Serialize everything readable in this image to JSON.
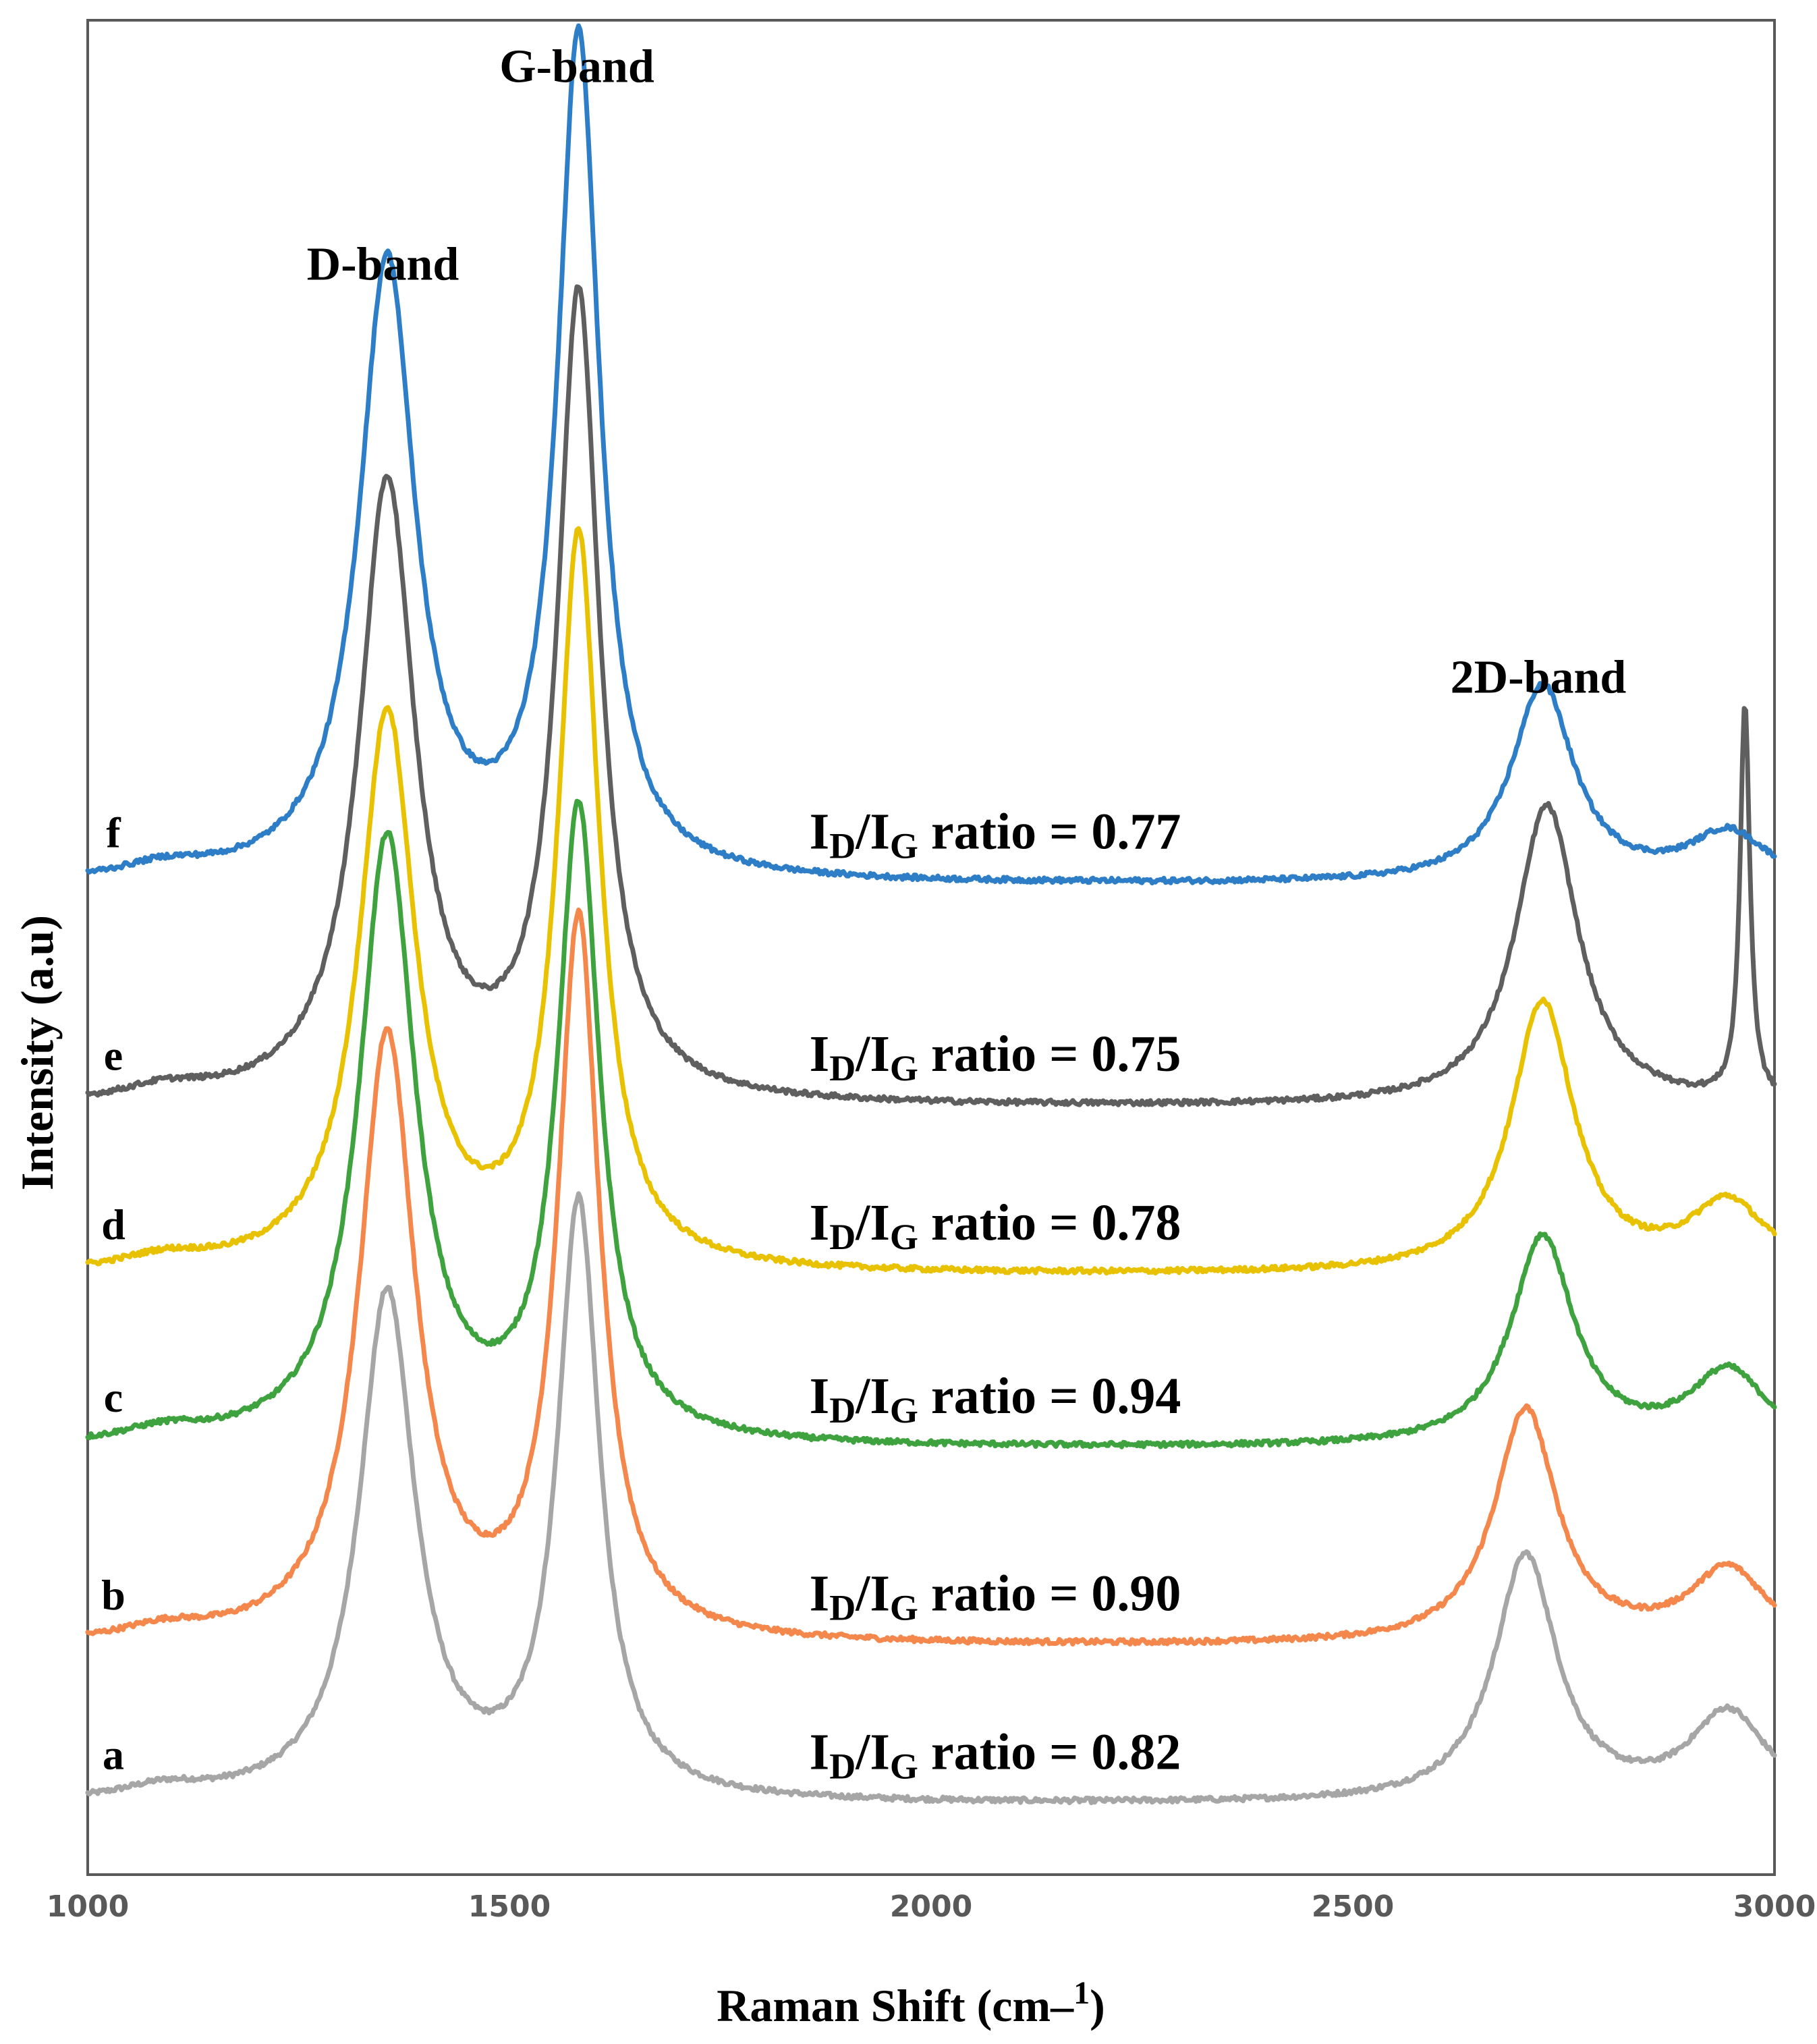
{
  "chart_data": {
    "type": "line",
    "xlabel": "Raman Shift (cm–1)",
    "xlabel_parts": {
      "text": "Raman Shift (cm",
      "dash": "–",
      "sup": "1",
      "close": ")"
    },
    "ylabel": "Intensity (a.u)",
    "xlim": [
      1000,
      3000
    ],
    "ylim": [
      0,
      7.5
    ],
    "xticks": [
      1000,
      1500,
      2000,
      2500,
      3000
    ],
    "grid": false,
    "legend": "none",
    "annotations": [
      {
        "text": "D-band",
        "x": 1350,
        "y": 6.45
      },
      {
        "text": "G-band",
        "x": 1580,
        "y": 7.25
      },
      {
        "text": "2D-band",
        "x": 2720,
        "y": 4.78
      }
    ],
    "ratio_template": {
      "I": "I",
      "D": "D",
      "slash": "/",
      "G": "G",
      "text": "ratio = "
    },
    "series": [
      {
        "name": "a",
        "color": "#a6a6a6",
        "baseline": 0.28,
        "D": 2.05,
        "G": 2.4,
        "D2": 1.0,
        "shoulder": 0.36,
        "D2pos": 2705,
        "sharp": 0,
        "ratio": "0.82"
      },
      {
        "name": "b",
        "color": "#f4874b",
        "baseline": 0.92,
        "D": 2.45,
        "G": 2.9,
        "D2": 0.95,
        "shoulder": 0.3,
        "D2pos": 2705,
        "sharp": 0,
        "ratio": "0.90"
      },
      {
        "name": "c",
        "color": "#3ea33e",
        "baseline": 1.72,
        "D": 2.45,
        "G": 2.55,
        "D2": 0.85,
        "shoulder": 0.3,
        "D2pos": 2725,
        "sharp": 0,
        "ratio": "0.94"
      },
      {
        "name": "d",
        "color": "#e8c200",
        "baseline": 2.42,
        "D": 2.25,
        "G": 2.95,
        "D2": 1.1,
        "shoulder": 0.28,
        "D2pos": 2725,
        "sharp": 0,
        "ratio": "0.78"
      },
      {
        "name": "e",
        "color": "#5f5f5f",
        "baseline": 3.1,
        "D": 2.5,
        "G": 3.25,
        "D2": 1.22,
        "shoulder": 0.0,
        "D2pos": 2730,
        "sharp": 1.6,
        "ratio": "0.75"
      },
      {
        "name": "f",
        "color": "#2e7ec7",
        "baseline": 4.0,
        "D": 2.5,
        "G": 3.4,
        "D2": 0.8,
        "shoulder": 0.2,
        "D2pos": 2725,
        "sharp": 0,
        "ratio": "0.77"
      }
    ]
  }
}
